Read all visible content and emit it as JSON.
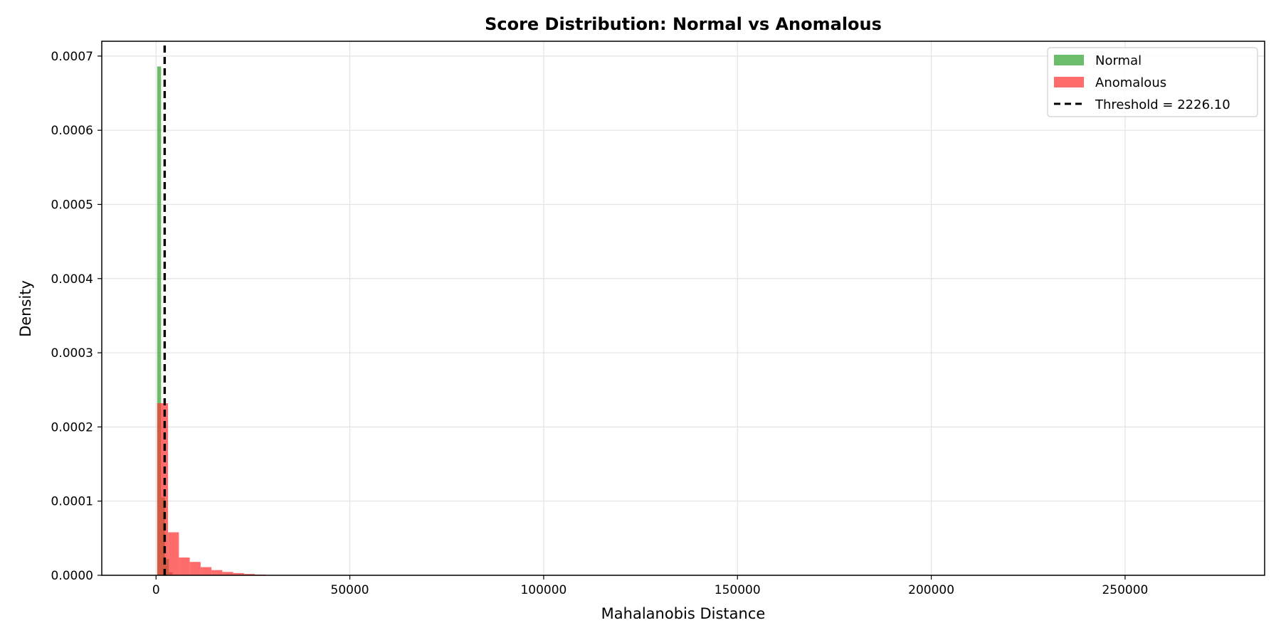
{
  "chart_data": {
    "type": "bar",
    "title": "Score Distribution: Normal vs Anomalous",
    "xlabel": "Mahalanobis Distance",
    "ylabel": "Density",
    "xlim": [
      -14000,
      286000
    ],
    "ylim": [
      0,
      0.00072
    ],
    "xticks": [
      0,
      50000,
      100000,
      150000,
      200000,
      250000
    ],
    "yticks": [
      0,
      0.0001,
      0.0002,
      0.0003,
      0.0004,
      0.0005,
      0.0006,
      0.0007
    ],
    "xtick_labels": [
      "0",
      "50000",
      "100000",
      "150000",
      "200000",
      "250000"
    ],
    "ytick_labels": [
      "0.0000",
      "0.0001",
      "0.0002",
      "0.0003",
      "0.0004",
      "0.0005",
      "0.0006",
      "0.0007"
    ],
    "grid": true,
    "legend_position": "top-right",
    "series": [
      {
        "name": "Normal",
        "kind": "histogram",
        "color": "#2ca02c",
        "opacity": 0.7,
        "bins": [
          {
            "x0": 300,
            "x1": 1300,
            "value": 0.000686
          },
          {
            "x0": 1300,
            "x1": 2300,
            "value": 0.000105
          },
          {
            "x0": 2300,
            "x1": 3300,
            "value": 2.2e-05
          },
          {
            "x0": 3300,
            "x1": 4300,
            "value": 4e-06
          }
        ]
      },
      {
        "name": "Anomalous",
        "kind": "histogram",
        "color": "#ff3333",
        "opacity": 0.72,
        "bins": [
          {
            "x0": 300,
            "x1": 3100,
            "value": 0.000232
          },
          {
            "x0": 3100,
            "x1": 5900,
            "value": 5.8e-05
          },
          {
            "x0": 5900,
            "x1": 8700,
            "value": 2.4e-05
          },
          {
            "x0": 8700,
            "x1": 11500,
            "value": 1.8e-05
          },
          {
            "x0": 11500,
            "x1": 14300,
            "value": 1.1e-05
          },
          {
            "x0": 14300,
            "x1": 17100,
            "value": 7e-06
          },
          {
            "x0": 17100,
            "x1": 19900,
            "value": 4.5e-06
          },
          {
            "x0": 19900,
            "x1": 22700,
            "value": 3e-06
          },
          {
            "x0": 22700,
            "x1": 25500,
            "value": 1.8e-06
          },
          {
            "x0": 25500,
            "x1": 28300,
            "value": 1e-06
          }
        ]
      }
    ],
    "threshold": {
      "label": "Threshold = 2226.10",
      "value": 2226.1,
      "color": "#000000",
      "style": "dashed"
    }
  }
}
